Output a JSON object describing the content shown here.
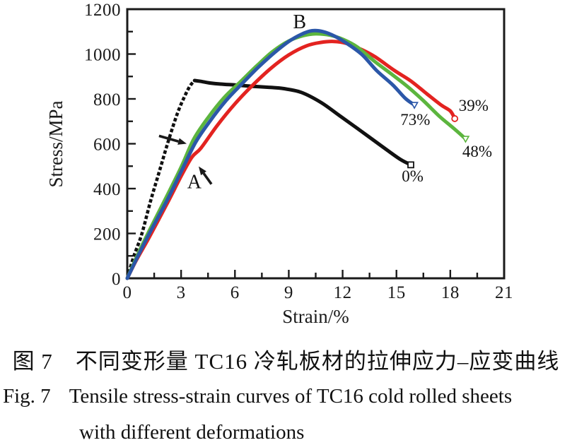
{
  "figure": {
    "caption_zh": "图 7　不同变形量 TC16 冷轧板材的拉伸应力–应变曲线",
    "caption_en_label": "Fig. 7",
    "caption_en_line1": "Tensile stress-strain curves of TC16 cold rolled sheets",
    "caption_en_line2": "with different deformations"
  },
  "chart_data": {
    "type": "line",
    "title": "",
    "xlabel": "Strain/%",
    "ylabel": "Stress/MPa",
    "xlim": [
      0,
      21
    ],
    "ylim": [
      0,
      1200
    ],
    "x_major_ticks": [
      0,
      3,
      6,
      9,
      12,
      15,
      18,
      21
    ],
    "x_minor_step": 1.5,
    "y_major_ticks": [
      0,
      200,
      400,
      600,
      800,
      1000,
      1200
    ],
    "y_minor_step": 100,
    "grid": false,
    "legend": "none",
    "axis_color": "#1a1a1a",
    "series": [
      {
        "name": "0%",
        "color": "#111111",
        "dashed_rise": true,
        "end_marker": "square",
        "points": [
          [
            0,
            0
          ],
          [
            0.35,
            95
          ],
          [
            0.8,
            195
          ],
          [
            1.3,
            345
          ],
          [
            1.8,
            480
          ],
          [
            2.3,
            615
          ],
          [
            2.8,
            737
          ],
          [
            3.2,
            812
          ],
          [
            3.5,
            858
          ],
          [
            3.75,
            882
          ],
          [
            4.1,
            878
          ],
          [
            4.6,
            871
          ],
          [
            5.2,
            866
          ],
          [
            6,
            862
          ],
          [
            7,
            856
          ],
          [
            8,
            851
          ],
          [
            8.7,
            846
          ],
          [
            9.7,
            829
          ],
          [
            10.8,
            784
          ],
          [
            11.8,
            727
          ],
          [
            13,
            658
          ],
          [
            14.2,
            588
          ],
          [
            15.2,
            531
          ],
          [
            15.8,
            506
          ]
        ]
      },
      {
        "name": "39%",
        "color": "#e32320",
        "dashed_rise": false,
        "end_marker": "circle",
        "points": [
          [
            0,
            0
          ],
          [
            0.5,
            80
          ],
          [
            1.2,
            180
          ],
          [
            2.2,
            330
          ],
          [
            3,
            455
          ],
          [
            3.6,
            540
          ],
          [
            4.1,
            580
          ],
          [
            5,
            680
          ],
          [
            6,
            778
          ],
          [
            7,
            862
          ],
          [
            8,
            936
          ],
          [
            9,
            996
          ],
          [
            10,
            1037
          ],
          [
            10.8,
            1052
          ],
          [
            11.5,
            1056
          ],
          [
            12.2,
            1048
          ],
          [
            13,
            1022
          ],
          [
            13.8,
            988
          ],
          [
            14.9,
            926
          ],
          [
            15.8,
            880
          ],
          [
            16.7,
            822
          ],
          [
            17.5,
            772
          ],
          [
            18,
            746
          ],
          [
            18.25,
            712
          ]
        ]
      },
      {
        "name": "48%",
        "color": "#5cb53e",
        "dashed_rise": false,
        "end_marker": "triangle",
        "points": [
          [
            0,
            0
          ],
          [
            0.55,
            100
          ],
          [
            1.15,
            200
          ],
          [
            2.1,
            350
          ],
          [
            3,
            495
          ],
          [
            3.7,
            620
          ],
          [
            4.5,
            716
          ],
          [
            5.4,
            806
          ],
          [
            6.3,
            876
          ],
          [
            7.2,
            946
          ],
          [
            8.1,
            1011
          ],
          [
            9,
            1058
          ],
          [
            9.8,
            1082
          ],
          [
            10.5,
            1090
          ],
          [
            11.3,
            1084
          ],
          [
            12,
            1066
          ],
          [
            12.8,
            1032
          ],
          [
            13.8,
            966
          ],
          [
            14.7,
            912
          ],
          [
            15.6,
            856
          ],
          [
            16.5,
            792
          ],
          [
            17.4,
            722
          ],
          [
            18.2,
            668
          ],
          [
            18.85,
            622
          ]
        ]
      },
      {
        "name": "73%",
        "color": "#2b57a8",
        "dashed_rise": false,
        "end_marker": "triangle",
        "points": [
          [
            0,
            0
          ],
          [
            0.6,
            100
          ],
          [
            1.2,
            195
          ],
          [
            2.2,
            345
          ],
          [
            3,
            475
          ],
          [
            3.8,
            605
          ],
          [
            4.6,
            700
          ],
          [
            5.5,
            792
          ],
          [
            6.4,
            868
          ],
          [
            7.3,
            941
          ],
          [
            8.2,
            1006
          ],
          [
            9,
            1056
          ],
          [
            9.7,
            1088
          ],
          [
            10.3,
            1104
          ],
          [
            10.9,
            1100
          ],
          [
            11.6,
            1078
          ],
          [
            12.3,
            1044
          ],
          [
            13.1,
            996
          ],
          [
            13.9,
            926
          ],
          [
            14.8,
            862
          ],
          [
            15.5,
            802
          ],
          [
            16,
            773
          ]
        ]
      }
    ],
    "annotations": {
      "labels": [
        {
          "text": "B",
          "x": 9.6,
          "y": 1146
        },
        {
          "text": "A",
          "x": 3.74,
          "y": 433
        },
        {
          "text": "73%",
          "x": 16.05,
          "y": 710
        },
        {
          "text": "39%",
          "x": 19.3,
          "y": 773
        },
        {
          "text": "48%",
          "x": 19.5,
          "y": 568
        },
        {
          "text": "0%",
          "x": 15.9,
          "y": 458
        }
      ],
      "arrows": [
        {
          "from": [
            1.77,
            635
          ],
          "to": [
            3.31,
            600
          ]
        },
        {
          "from": [
            4.69,
            420
          ],
          "to": [
            3.98,
            499
          ]
        }
      ]
    }
  }
}
